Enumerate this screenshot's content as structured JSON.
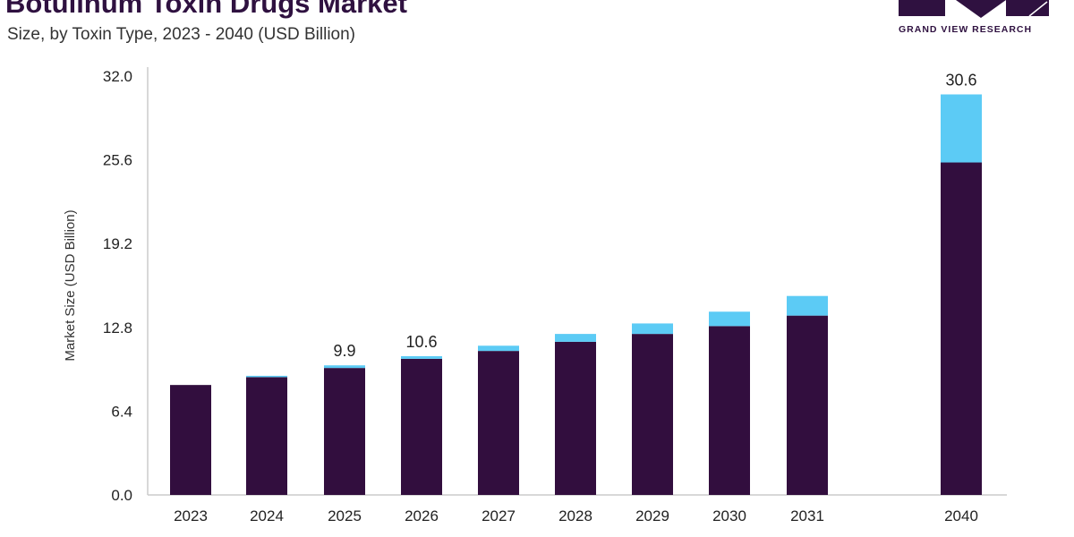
{
  "header": {
    "title": "Botulinum Toxin Drugs Market",
    "subtitle": "Size, by Toxin Type, 2023 - 2040 (USD Billion)"
  },
  "logo": {
    "text": "GRAND VIEW RESEARCH",
    "icon": "grand-view-research-logo",
    "color": "#2f1140"
  },
  "colors": {
    "series_a": "#320e3e",
    "series_b": "#5ccbf5",
    "axis": "#cccccc"
  },
  "chart_data": {
    "type": "bar",
    "stacked": true,
    "title": "Botulinum Toxin Drugs Market",
    "subtitle": "Size, by Toxin Type, 2023 - 2040 (USD Billion)",
    "xlabel": "",
    "ylabel": "Market Size (USD Billion)",
    "ylim": [
      0,
      32
    ],
    "yticks": [
      "0.0",
      "6.4",
      "12.8",
      "19.2",
      "25.6",
      "32.0"
    ],
    "categories": [
      "2023",
      "2024",
      "2025",
      "2026",
      "2027",
      "2028",
      "2029",
      "2030",
      "2031",
      "2040"
    ],
    "series": [
      {
        "values": [
          8.4,
          9.0,
          9.7,
          10.4,
          11.0,
          11.7,
          12.3,
          12.9,
          13.7,
          25.4
        ]
      },
      {
        "values": [
          0.0,
          0.1,
          0.2,
          0.2,
          0.4,
          0.6,
          0.8,
          1.1,
          1.5,
          5.2
        ]
      }
    ],
    "data_labels": {
      "2025": "9.9",
      "2026": "10.6",
      "2040": "30.6"
    },
    "grid": false,
    "legend": "none"
  }
}
